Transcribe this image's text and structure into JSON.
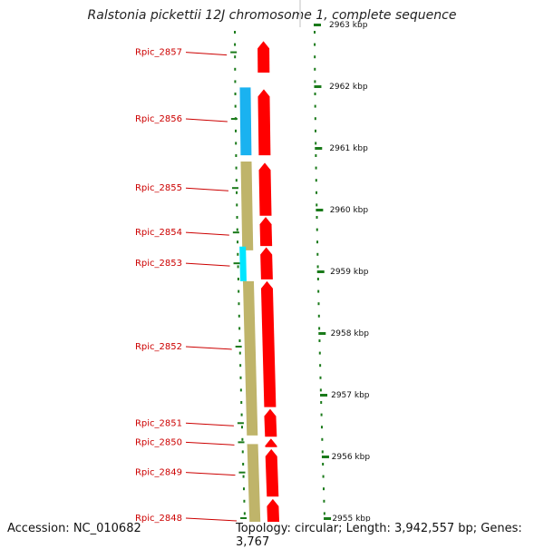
{
  "title": "Ralstonia pickettii 12J chromosome 1, complete sequence",
  "accession": "Accession: NC_010682",
  "summary": "Topology: circular; Length: 3,942,557 bp; Genes: 3,767",
  "colors": {
    "cds": "#ff0000",
    "gene_label": "#cc0000",
    "operon_tan": "#bfb46a",
    "light_blue": "#1ab2f0",
    "cyan": "#00e5ff",
    "dark_blue": "#1010d0",
    "backbone": "#888888",
    "tick": "#1a7a1a"
  },
  "genes": [
    {
      "name": "Rpic_2857",
      "kbp": 2962.55
    },
    {
      "name": "Rpic_2856",
      "kbp": 2961.47
    },
    {
      "name": "Rpic_2855",
      "kbp": 2960.35
    },
    {
      "name": "Rpic_2854",
      "kbp": 2959.63
    },
    {
      "name": "Rpic_2853",
      "kbp": 2959.13
    },
    {
      "name": "Rpic_2852",
      "kbp": 2957.78
    },
    {
      "name": "Rpic_2851",
      "kbp": 2956.54
    },
    {
      "name": "Rpic_2850",
      "kbp": 2956.23
    },
    {
      "name": "Rpic_2849",
      "kbp": 2955.74
    },
    {
      "name": "Rpic_2848",
      "kbp": 2955.0
    }
  ],
  "scale": [
    {
      "label": "2963 kbp",
      "kbp": 2963
    },
    {
      "label": "2962 kbp",
      "kbp": 2962
    },
    {
      "label": "2961 kbp",
      "kbp": 2961
    },
    {
      "label": "2960 kbp",
      "kbp": 2960
    },
    {
      "label": "2959 kbp",
      "kbp": 2959
    },
    {
      "label": "2958 kbp",
      "kbp": 2958
    },
    {
      "label": "2957 kbp",
      "kbp": 2957
    },
    {
      "label": "2956 kbp",
      "kbp": 2956
    },
    {
      "label": "2955 kbp",
      "kbp": 2955
    }
  ],
  "cds_blocks": [
    {
      "kbp_top": 2962.73,
      "kbp_bottom": 2962.22,
      "arrow": "up"
    },
    {
      "kbp_top": 2961.95,
      "kbp_bottom": 2960.88,
      "arrow": "up"
    },
    {
      "kbp_top": 2960.76,
      "kbp_bottom": 2959.9,
      "arrow": "up"
    },
    {
      "kbp_top": 2959.88,
      "kbp_bottom": 2959.41,
      "arrow": "up"
    },
    {
      "kbp_top": 2959.39,
      "kbp_bottom": 2958.87,
      "arrow": "up"
    },
    {
      "kbp_top": 2958.84,
      "kbp_bottom": 2956.8,
      "arrow": "up"
    },
    {
      "kbp_top": 2956.77,
      "kbp_bottom": 2956.32,
      "arrow": "up"
    },
    {
      "kbp_top": 2956.29,
      "kbp_bottom": 2956.15,
      "arrow": "up"
    },
    {
      "kbp_top": 2956.12,
      "kbp_bottom": 2955.35,
      "arrow": "up"
    },
    {
      "kbp_top": 2955.31,
      "kbp_bottom": 2954.55,
      "arrow": "up"
    }
  ],
  "feature_blocks": [
    {
      "kind": "light_blue",
      "kbp_top": 2961.98,
      "kbp_bottom": 2960.88
    },
    {
      "kind": "operon_tan",
      "kbp_top": 2960.78,
      "kbp_bottom": 2959.34
    },
    {
      "kind": "cyan",
      "kbp_top": 2959.4,
      "kbp_bottom": 2958.84
    },
    {
      "kind": "operon_tan",
      "kbp_top": 2958.84,
      "kbp_bottom": 2956.34
    },
    {
      "kind": "operon_tan",
      "kbp_top": 2956.2,
      "kbp_bottom": 2954.5
    }
  ],
  "top_features": [
    {
      "kind": "dark_blue"
    },
    {
      "kind": "light_blue"
    }
  ]
}
